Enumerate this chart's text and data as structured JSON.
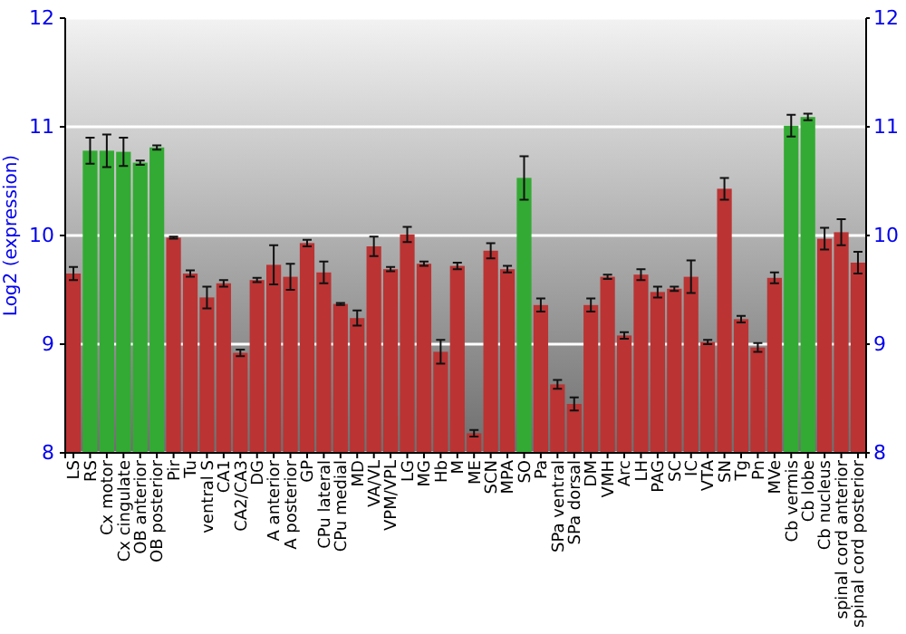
{
  "chart_data": {
    "type": "bar",
    "ylabel": "Log2 (expression)",
    "categories": [
      "LS",
      "RS",
      "Cx motor",
      "Cx cingulate",
      "OB anterior",
      "OB posterior",
      "Pir",
      "Tu",
      "ventral S",
      "CA1",
      "CA2/CA3",
      "DG",
      "A anterior",
      "A posterior",
      "GP",
      "CPu lateral",
      "CPu medial",
      "MD",
      "VA/VL",
      "VPM/VPL",
      "LG",
      "MG",
      "Hb",
      "M",
      "ME",
      "SCN",
      "MPA",
      "SO",
      "Pa",
      "SPa ventral",
      "SPa dorsal",
      "DM",
      "VMH",
      "Arc",
      "LH",
      "PAG",
      "SC",
      "IC",
      "VTA",
      "SN",
      "Tg",
      "Pn",
      "MVe",
      "Cb vermis",
      "Cb lobe",
      "Cb nucleus",
      "spinal cord anterior",
      "spinal cord posterior"
    ],
    "values": [
      9.65,
      10.78,
      10.78,
      10.77,
      10.67,
      10.81,
      9.98,
      9.65,
      9.43,
      9.56,
      8.92,
      9.59,
      9.73,
      9.62,
      9.93,
      9.66,
      9.37,
      9.24,
      9.9,
      9.69,
      10.01,
      9.74,
      8.93,
      9.72,
      8.18,
      9.86,
      9.69,
      10.53,
      9.36,
      8.63,
      8.45,
      9.36,
      9.62,
      9.08,
      9.64,
      9.48,
      9.51,
      9.62,
      9.02,
      10.43,
      9.23,
      8.97,
      9.61,
      11.01,
      11.09,
      9.97,
      10.03,
      9.75
    ],
    "errors": [
      0.06,
      0.12,
      0.15,
      0.13,
      0.02,
      0.02,
      0.01,
      0.03,
      0.1,
      0.03,
      0.03,
      0.02,
      0.18,
      0.12,
      0.03,
      0.1,
      0.01,
      0.07,
      0.09,
      0.02,
      0.07,
      0.02,
      0.11,
      0.03,
      0.03,
      0.07,
      0.03,
      0.2,
      0.06,
      0.04,
      0.06,
      0.06,
      0.02,
      0.03,
      0.05,
      0.05,
      0.02,
      0.15,
      0.02,
      0.1,
      0.03,
      0.04,
      0.05,
      0.1,
      0.03,
      0.1,
      0.12,
      0.1
    ],
    "colors": [
      "#bb3333",
      "#33aa33",
      "#33aa33",
      "#33aa33",
      "#33aa33",
      "#33aa33",
      "#bb3333",
      "#bb3333",
      "#bb3333",
      "#bb3333",
      "#bb3333",
      "#bb3333",
      "#bb3333",
      "#bb3333",
      "#bb3333",
      "#bb3333",
      "#bb3333",
      "#bb3333",
      "#bb3333",
      "#bb3333",
      "#bb3333",
      "#bb3333",
      "#bb3333",
      "#bb3333",
      "#bb3333",
      "#bb3333",
      "#bb3333",
      "#33aa33",
      "#bb3333",
      "#bb3333",
      "#bb3333",
      "#bb3333",
      "#bb3333",
      "#bb3333",
      "#bb3333",
      "#bb3333",
      "#bb3333",
      "#bb3333",
      "#bb3333",
      "#bb3333",
      "#bb3333",
      "#bb3333",
      "#bb3333",
      "#33aa33",
      "#33aa33",
      "#bb3333",
      "#bb3333",
      "#bb3333"
    ],
    "ylim": [
      8,
      12
    ],
    "yticks": [
      8,
      9,
      10,
      11,
      12
    ],
    "y2lim": [
      8,
      12
    ],
    "y2ticks": [
      8,
      9,
      10,
      11,
      12
    ],
    "grid": "y"
  }
}
